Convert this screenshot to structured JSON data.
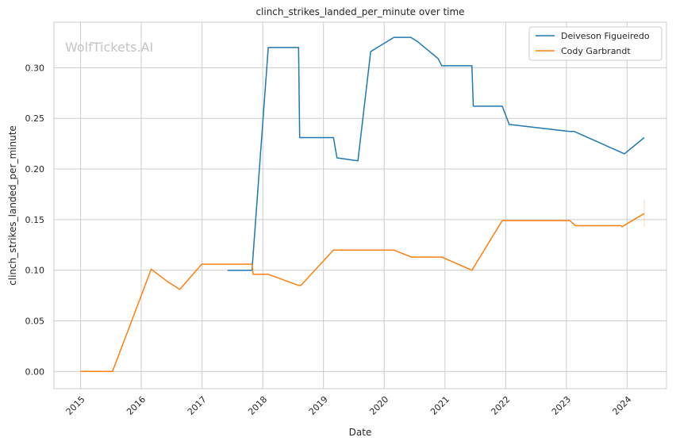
{
  "chart_data": {
    "type": "line",
    "title": "clinch_strikes_landed_per_minute over time",
    "xlabel": "Date",
    "ylabel": "clinch_strikes_landed_per_minute",
    "watermark": "WolfTickets.AI",
    "x_ticks": [
      "2015",
      "2016",
      "2017",
      "2018",
      "2019",
      "2020",
      "2021",
      "2022",
      "2023",
      "2024"
    ],
    "y_ticks": [
      "0.00",
      "0.05",
      "0.10",
      "0.15",
      "0.20",
      "0.25",
      "0.30"
    ],
    "xlim": [
      "2014-07-25",
      "2024-08-25"
    ],
    "ylim": [
      -0.017,
      0.345
    ],
    "grid": true,
    "legend_position": "top-right",
    "series": [
      {
        "name": "Deiveson Figueiredo",
        "color": "#1f77b4",
        "points": [
          [
            "2017-06-03",
            0.1
          ],
          [
            "2017-10-28",
            0.1
          ],
          [
            "2018-02-03",
            0.32
          ],
          [
            "2018-08-04",
            0.32
          ],
          [
            "2018-08-11",
            0.231
          ],
          [
            "2019-03-02",
            0.231
          ],
          [
            "2019-03-23",
            0.211
          ],
          [
            "2019-07-27",
            0.208
          ],
          [
            "2019-10-12",
            0.316
          ],
          [
            "2020-02-29",
            0.33
          ],
          [
            "2020-06-10",
            0.33
          ],
          [
            "2020-07-18",
            0.326
          ],
          [
            "2020-11-21",
            0.309
          ],
          [
            "2020-12-12",
            0.302
          ],
          [
            "2021-06-12",
            0.302
          ],
          [
            "2021-06-20",
            0.262
          ],
          [
            "2021-12-11",
            0.262
          ],
          [
            "2022-01-22",
            0.244
          ],
          [
            "2023-01-21",
            0.237
          ],
          [
            "2023-02-18",
            0.237
          ],
          [
            "2023-12-02",
            0.216
          ],
          [
            "2023-12-16",
            0.215
          ],
          [
            "2024-04-13",
            0.231
          ]
        ]
      },
      {
        "name": "Cody Garbrandt",
        "color": "#ff7f0e",
        "points": [
          [
            "2015-01-01",
            0.0
          ],
          [
            "2015-07-12",
            0.0
          ],
          [
            "2016-03-01",
            0.101
          ],
          [
            "2016-06-05",
            0.089
          ],
          [
            "2016-08-20",
            0.081
          ],
          [
            "2016-12-30",
            0.106
          ],
          [
            "2017-10-28",
            0.106
          ],
          [
            "2017-11-04",
            0.096
          ],
          [
            "2018-02-03",
            0.096
          ],
          [
            "2018-08-04",
            0.085
          ],
          [
            "2018-08-18",
            0.085
          ],
          [
            "2019-03-02",
            0.12
          ],
          [
            "2020-02-29",
            0.12
          ],
          [
            "2020-06-13",
            0.113
          ],
          [
            "2020-12-12",
            0.113
          ],
          [
            "2021-06-12",
            0.1
          ],
          [
            "2021-12-11",
            0.149
          ],
          [
            "2023-01-21",
            0.149
          ],
          [
            "2023-02-25",
            0.144
          ],
          [
            "2023-11-25",
            0.144
          ],
          [
            "2023-12-02",
            0.143
          ],
          [
            "2024-04-13",
            0.156
          ]
        ]
      }
    ]
  }
}
